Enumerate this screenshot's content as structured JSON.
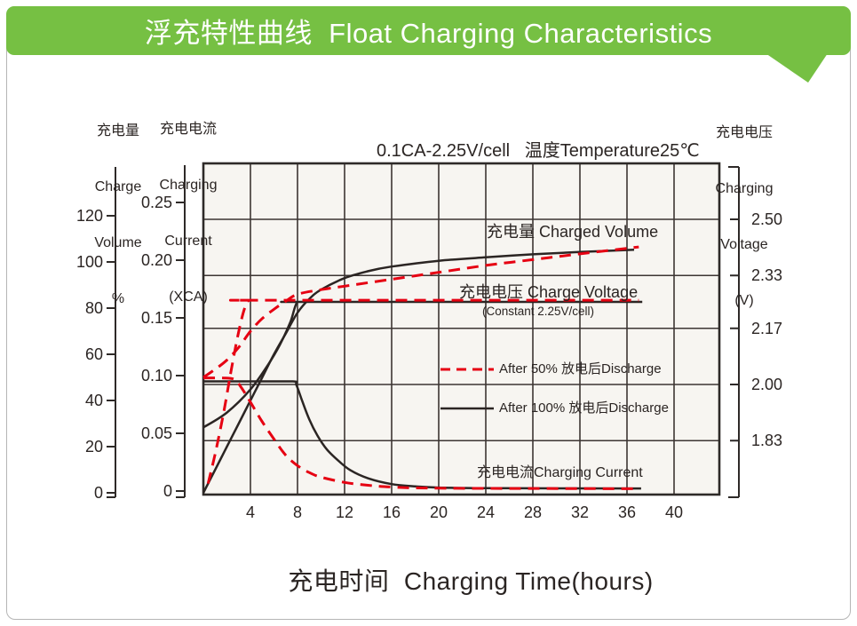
{
  "banner": {
    "title": "浮充特性曲线  Float Charging Characteristics",
    "color": "#76c043"
  },
  "chart_data": {
    "type": "line",
    "title": "0.1CA-2.25V/cell   温度Temperature25℃",
    "xlabel": "充电时间  Charging Time(hours)",
    "x_unit": "hours",
    "x_ticks": [
      4,
      8,
      12,
      16,
      20,
      24,
      28,
      32,
      36,
      40
    ],
    "x_range": [
      0,
      44
    ],
    "grid": true,
    "plot_bg": "#f7f5f1",
    "grid_color": "#3c3533",
    "axes": {
      "charge_volume": {
        "label_lines": [
          "充电量",
          "Charge",
          "Volume",
          "%"
        ],
        "ticks": [
          0,
          20,
          40,
          60,
          80,
          100,
          120
        ],
        "range": [
          0,
          130
        ]
      },
      "charging_current": {
        "label_lines": [
          "充电电流",
          "Charging",
          "Current",
          "(XCA)"
        ],
        "ticks": [
          "0",
          "0.05",
          "0.10",
          "0.15",
          "0.20",
          "0.25"
        ],
        "range": [
          0,
          0.28
        ]
      },
      "charging_voltage": {
        "label_lines": [
          "充电电压",
          "Charging",
          "Voltage",
          "(V)"
        ],
        "ticks": [
          "2.50",
          "2.33",
          "2.17",
          "2.00",
          "1.83"
        ],
        "range": [
          1.67,
          2.67
        ]
      }
    },
    "annotations": {
      "charged_volume": "充电量 Charged Volume",
      "charge_voltage": "充电电压 Charge Voltage",
      "charge_voltage_sub": "(Constant 2.25V/cell)",
      "charging_current": "充电电流Charging Current"
    },
    "legend": [
      {
        "label": "After 50% 放电后Discharge",
        "style": "dashed",
        "color": "#e60012"
      },
      {
        "label": "After 100% 放电后Discharge",
        "style": "solid",
        "color": "#2b2523"
      }
    ],
    "series": [
      {
        "name": "charged_volume_100",
        "condition": "after 100% discharge",
        "axis": "volume",
        "style": "solid",
        "color": "#2b2523",
        "points": [
          [
            0,
            0
          ],
          [
            1,
            10
          ],
          [
            2,
            20
          ],
          [
            3,
            30
          ],
          [
            4,
            40
          ],
          [
            5,
            50
          ],
          [
            6,
            60
          ],
          [
            7,
            69
          ],
          [
            8,
            78
          ],
          [
            9,
            84
          ],
          [
            10,
            88
          ],
          [
            12,
            93
          ],
          [
            14,
            96
          ],
          [
            16,
            98
          ],
          [
            20,
            100.5
          ],
          [
            24,
            102
          ],
          [
            28,
            103.3
          ],
          [
            32,
            104.3
          ],
          [
            36.6,
            105.3
          ]
        ]
      },
      {
        "name": "charge_voltage_100",
        "condition": "after 100% discharge",
        "axis": "voltage",
        "style": "solid",
        "color": "#2b2523",
        "points": [
          [
            0,
            1.87
          ],
          [
            2,
            1.915
          ],
          [
            4,
            1.985
          ],
          [
            5.5,
            2.06
          ],
          [
            6.5,
            2.12
          ],
          [
            7.4,
            2.19
          ],
          [
            8,
            2.25
          ],
          [
            9,
            2.25
          ],
          [
            37.3,
            2.25
          ]
        ]
      },
      {
        "name": "charging_current_100",
        "condition": "after 100% discharge",
        "axis": "current",
        "style": "solid",
        "color": "#2b2523",
        "points": [
          [
            0,
            0.095
          ],
          [
            4,
            0.095
          ],
          [
            7.6,
            0.095
          ],
          [
            7.9,
            0.092
          ],
          [
            8.4,
            0.078
          ],
          [
            9,
            0.062
          ],
          [
            9.7,
            0.048
          ],
          [
            10.5,
            0.036
          ],
          [
            11.5,
            0.026
          ],
          [
            12.5,
            0.018
          ],
          [
            14,
            0.011
          ],
          [
            16,
            0.006
          ],
          [
            18,
            0.004
          ],
          [
            20,
            0.003
          ],
          [
            24,
            0.0025
          ],
          [
            37.2,
            0.0022
          ]
        ]
      },
      {
        "name": "charged_volume_50",
        "condition": "after 50% discharge",
        "axis": "volume",
        "style": "dashed",
        "color": "#e60012",
        "points": [
          [
            0,
            50
          ],
          [
            1,
            53.5
          ],
          [
            2,
            57.5
          ],
          [
            3,
            63
          ],
          [
            4,
            70
          ],
          [
            5,
            75.5
          ],
          [
            6,
            79.5
          ],
          [
            7,
            83
          ],
          [
            8,
            86
          ],
          [
            10,
            88
          ],
          [
            12,
            89.5
          ],
          [
            16,
            92.5
          ],
          [
            20,
            95.5
          ],
          [
            24,
            98.5
          ],
          [
            28,
            101
          ],
          [
            32,
            103.5
          ],
          [
            37,
            106.5
          ]
        ]
      },
      {
        "name": "charge_voltage_50",
        "condition": "after 50% discharge",
        "axis": "voltage",
        "style": "dashed",
        "color": "#e60012",
        "points": [
          [
            0.4,
            1.7
          ],
          [
            1.0,
            1.79
          ],
          [
            1.7,
            1.91
          ],
          [
            2.4,
            2.05
          ],
          [
            3.0,
            2.16
          ],
          [
            3.5,
            2.23
          ],
          [
            3.9,
            2.255
          ],
          [
            5,
            2.255
          ],
          [
            37,
            2.255
          ]
        ]
      },
      {
        "name": "charging_current_50",
        "condition": "after 50% discharge",
        "axis": "current",
        "style": "dashed",
        "color": "#e60012",
        "points": [
          [
            0,
            0.098
          ],
          [
            1.5,
            0.098
          ],
          [
            2.6,
            0.097
          ],
          [
            3.2,
            0.09
          ],
          [
            4,
            0.077
          ],
          [
            5,
            0.06
          ],
          [
            6,
            0.045
          ],
          [
            7,
            0.031
          ],
          [
            8,
            0.022
          ],
          [
            9,
            0.016
          ],
          [
            10,
            0.012
          ],
          [
            12,
            0.0075
          ],
          [
            14,
            0.005
          ],
          [
            16,
            0.0035
          ],
          [
            20,
            0.0025
          ],
          [
            37,
            0.002
          ]
        ]
      }
    ]
  }
}
